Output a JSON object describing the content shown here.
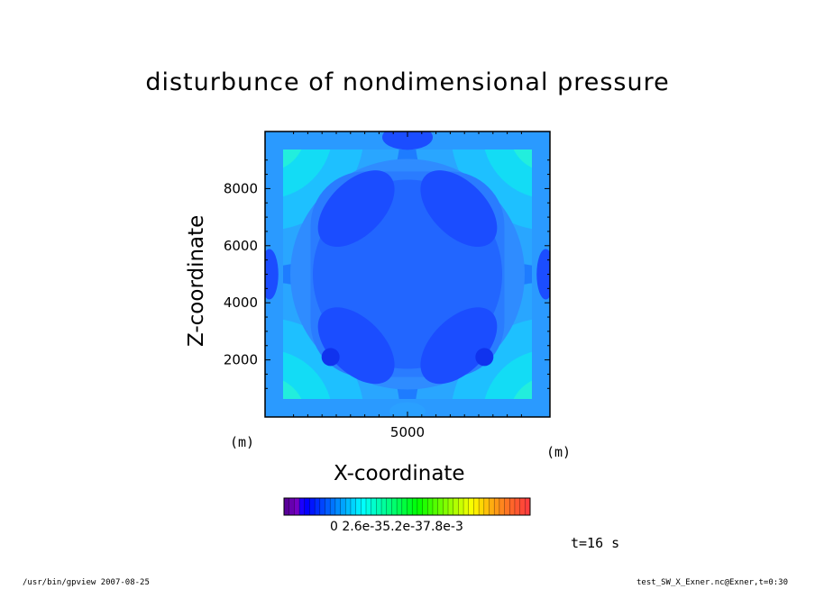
{
  "title": "disturbunce of nondimensional pressure",
  "chart_data": {
    "type": "heatmap",
    "title": "disturbunce of nondimensional pressure",
    "xlabel": "X-coordinate",
    "ylabel": "Z-coordinate",
    "x_unit": "(m)",
    "y_unit": "(m)",
    "xlim": [
      0,
      10000
    ],
    "ylim": [
      0,
      10000
    ],
    "x_ticks": [
      5000
    ],
    "y_ticks": [
      2000,
      4000,
      6000,
      8000
    ],
    "colorbar_labels": [
      "0",
      "2.6e-3",
      "5.2e-3",
      "7.8e-3"
    ],
    "colorbar_label_text": "0   2.6e-35.2e-37.8e-3",
    "field_description": "symmetric pattern: low (deep blue) interior with four diagonal minima lobes near (3000,2000),(7000,2000),(3000,7500),(7000,7500); higher (cyan/green) values toward corners",
    "colors": {
      "low": "#1a33ff",
      "mid": "#3aa0ff",
      "high": "#24f0b0"
    }
  },
  "time_label": "t=16 s",
  "footer": {
    "left": "/usr/bin/gpview   2007-08-25",
    "right": "test_SW_X_Exner.nc@Exner,t=0:30"
  }
}
